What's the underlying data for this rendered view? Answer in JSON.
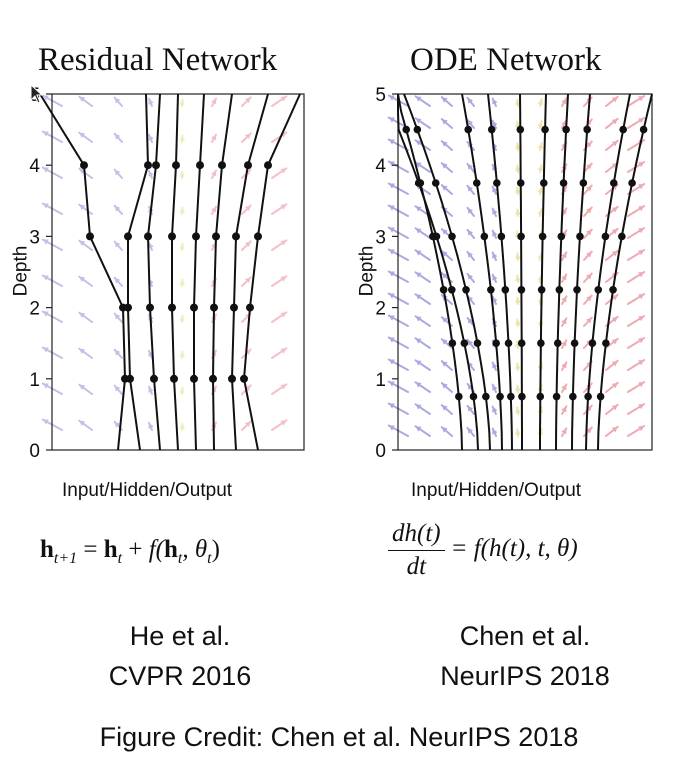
{
  "left_panel": {
    "title": "Residual Network",
    "xlabel": "Input/Hidden/Output",
    "ylabel": "Depth",
    "y_ticks": [
      "0",
      "1",
      "2",
      "3",
      "4",
      "5"
    ],
    "equation": {
      "lhs_h": "h",
      "lhs_sub": "t+1",
      "eq": "=",
      "rhs_h": "h",
      "rhs_sub": "t",
      "plus": "+",
      "f_open": "f(",
      "arg_h": "h",
      "arg_sub": "t",
      "sep": ", θ",
      "theta_sub": "t",
      "close": ")"
    },
    "citation_line1": "He et al.",
    "citation_line2": "CVPR 2016"
  },
  "right_panel": {
    "title": "ODE Network",
    "xlabel": "Input/Hidden/Output",
    "ylabel": "Depth",
    "y_ticks": [
      "0",
      "1",
      "2",
      "3",
      "4",
      "5"
    ],
    "equation": {
      "numerator": "dh(t)",
      "denominator": "dt",
      "rhs": "= f(h(t), t, θ)"
    },
    "citation_line1": "Chen et al.",
    "citation_line2": "NeurIPS 2018"
  },
  "credit": "Figure Credit: Chen et al. NeurIPS 2018",
  "colors": {
    "left_field": "#8e8ed8",
    "right_field": "#e88e98",
    "center_field": "#e8dc8c",
    "trajectory": "#111111"
  }
}
